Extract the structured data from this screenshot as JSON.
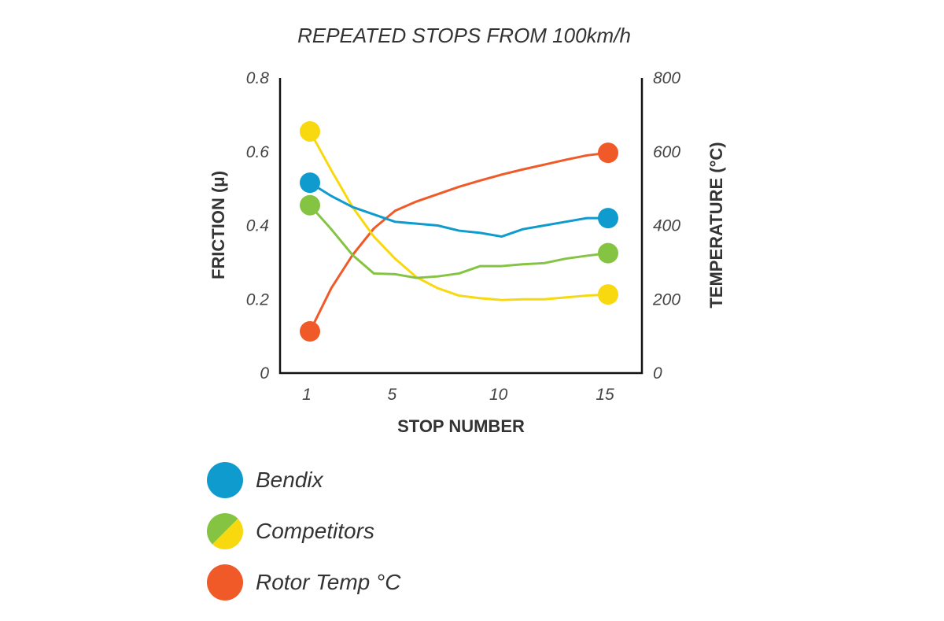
{
  "chart_data": {
    "type": "line",
    "title": "REPEATED STOPS FROM 100km/h",
    "xlabel": "STOP NUMBER",
    "ylabel": "FRICTION (μ)",
    "y2label": "TEMPERATURE (°C)",
    "x": [
      1,
      2,
      3,
      4,
      5,
      6,
      7,
      8,
      9,
      10,
      11,
      12,
      13,
      14,
      15
    ],
    "xticks": [
      "1",
      "5",
      "10",
      "15"
    ],
    "xtick_values": [
      1,
      5,
      10,
      15
    ],
    "ylim": [
      0,
      0.8
    ],
    "yticks": [
      "0",
      "0.2",
      "0.4",
      "0.6",
      "0.8"
    ],
    "y2lim": [
      0,
      800
    ],
    "y2ticks": [
      "0",
      "200",
      "400",
      "600",
      "800"
    ],
    "grid": false,
    "legend_position": "bottom-left",
    "series": [
      {
        "name": "Bendix",
        "axis": "left",
        "color": "#0f9bcd",
        "values": [
          0.516,
          0.48,
          0.45,
          0.43,
          0.41,
          0.405,
          0.4,
          0.386,
          0.38,
          0.37,
          0.39,
          0.4,
          0.41,
          0.42,
          0.42
        ]
      },
      {
        "name": "Competitors (green)",
        "axis": "left",
        "color": "#85c443",
        "values": [
          0.455,
          0.39,
          0.32,
          0.27,
          0.268,
          0.258,
          0.262,
          0.27,
          0.29,
          0.29,
          0.295,
          0.298,
          0.31,
          0.318,
          0.325
        ]
      },
      {
        "name": "Competitors (yellow)",
        "axis": "left",
        "color": "#f8d90f",
        "values": [
          0.655,
          0.55,
          0.45,
          0.37,
          0.31,
          0.26,
          0.23,
          0.21,
          0.203,
          0.198,
          0.2,
          0.2,
          0.205,
          0.21,
          0.213
        ]
      },
      {
        "name": "Rotor Temp °C",
        "axis": "right",
        "color": "#f05a28",
        "values": [
          113,
          230,
          320,
          392,
          440,
          465,
          485,
          505,
          522,
          538,
          552,
          565,
          578,
          590,
          597
        ]
      }
    ]
  },
  "legend": {
    "items": [
      {
        "label": "Bendix",
        "colors": [
          "#0f9bcd"
        ]
      },
      {
        "label": "Competitors",
        "colors": [
          "#85c443",
          "#f8d90f"
        ]
      },
      {
        "label": "Rotor Temp °C",
        "colors": [
          "#f05a28"
        ]
      }
    ]
  }
}
